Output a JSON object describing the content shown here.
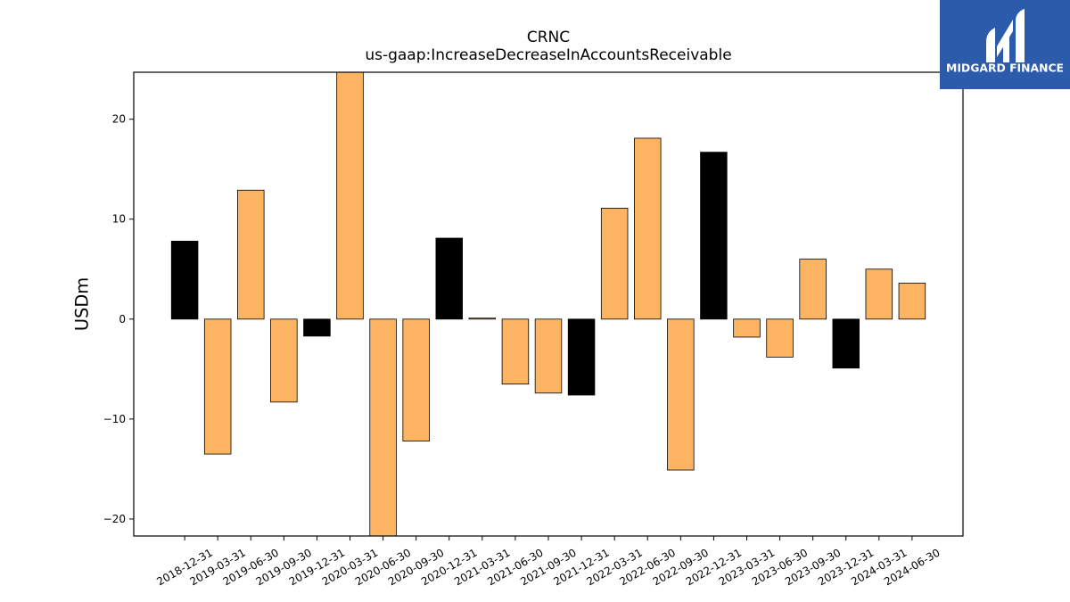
{
  "logo": {
    "text": "MIDGARD FINANCE",
    "icon": "midgard-logo-icon",
    "background_color": "#2C5BAC"
  },
  "chart_data": {
    "type": "bar",
    "title": "CRNC",
    "subtitle": "us-gaap:IncreaseDecreaseInAccountsReceivable",
    "ylabel": "USDm",
    "categories": [
      "2018-12-31",
      "2019-03-31",
      "2019-06-30",
      "2019-09-30",
      "2019-12-31",
      "2020-03-31",
      "2020-06-30",
      "2020-09-30",
      "2020-12-31",
      "2021-03-31",
      "2021-06-30",
      "2021-09-30",
      "2021-12-31",
      "2022-03-31",
      "2022-06-30",
      "2022-09-30",
      "2022-12-31",
      "2023-03-31",
      "2023-06-30",
      "2023-09-30",
      "2023-12-31",
      "2024-03-31",
      "2024-06-30"
    ],
    "values": [
      7.8,
      -13.5,
      12.9,
      -8.3,
      -1.7,
      26.0,
      -23.0,
      -12.2,
      8.1,
      0.1,
      -6.5,
      -7.4,
      -7.6,
      11.1,
      18.1,
      -15.1,
      16.7,
      -1.8,
      -3.8,
      6.0,
      -4.9,
      5.0,
      3.6
    ],
    "bar_colors": [
      "#000000",
      "#FDB462",
      "#FDB462",
      "#FDB462",
      "#000000",
      "#FDB462",
      "#FDB462",
      "#FDB462",
      "#000000",
      "#FDB462",
      "#FDB462",
      "#FDB462",
      "#000000",
      "#FDB462",
      "#FDB462",
      "#FDB462",
      "#000000",
      "#FDB462",
      "#FDB462",
      "#FDB462",
      "#000000",
      "#FDB462",
      "#FDB462"
    ],
    "bar_edge_color": "#000000",
    "ylim": [
      -21.7,
      24.7
    ],
    "yticks": [
      -20,
      -10,
      0,
      10,
      20
    ],
    "ytick_labels": [
      "−20",
      "−10",
      "0",
      "10",
      "20"
    ],
    "grid": false
  }
}
